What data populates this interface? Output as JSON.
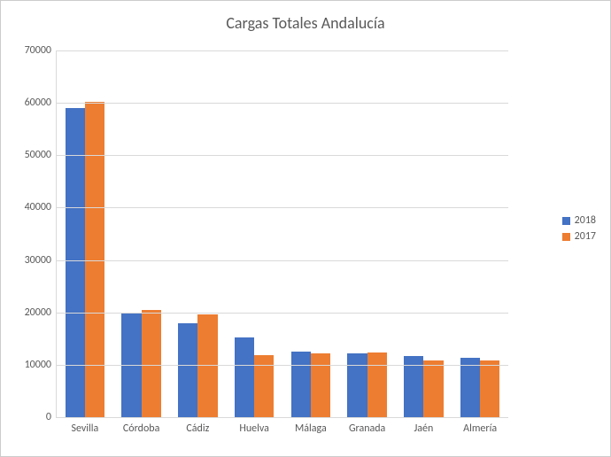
{
  "chart": {
    "type": "bar",
    "title": "Cargas Totales Andalucía",
    "title_fontsize": 18,
    "title_color": "#595959",
    "background_color": "#ffffff",
    "grid_color": "#d9d9d9",
    "label_color": "#595959",
    "label_fontsize": 12,
    "categories": [
      "Sevilla",
      "Córdoba",
      "Cádiz",
      "Huelva",
      "Málaga",
      "Granada",
      "Jaén",
      "Almería"
    ],
    "series": [
      {
        "name": "2018",
        "color": "#4472c4",
        "values": [
          59000,
          19800,
          18000,
          15200,
          12500,
          12200,
          11600,
          11300
        ]
      },
      {
        "name": "2017",
        "color": "#ed7d31",
        "values": [
          60200,
          20500,
          19700,
          11800,
          12200,
          12400,
          10900,
          10800
        ]
      }
    ],
    "ylim": [
      0,
      70000
    ],
    "ytick_step": 10000,
    "bar_group_gap": 0.3,
    "bar_inner_gap": 0.0
  },
  "legend": {
    "items": [
      {
        "label": "2018",
        "color": "#4472c4"
      },
      {
        "label": "2017",
        "color": "#ed7d31"
      }
    ]
  }
}
